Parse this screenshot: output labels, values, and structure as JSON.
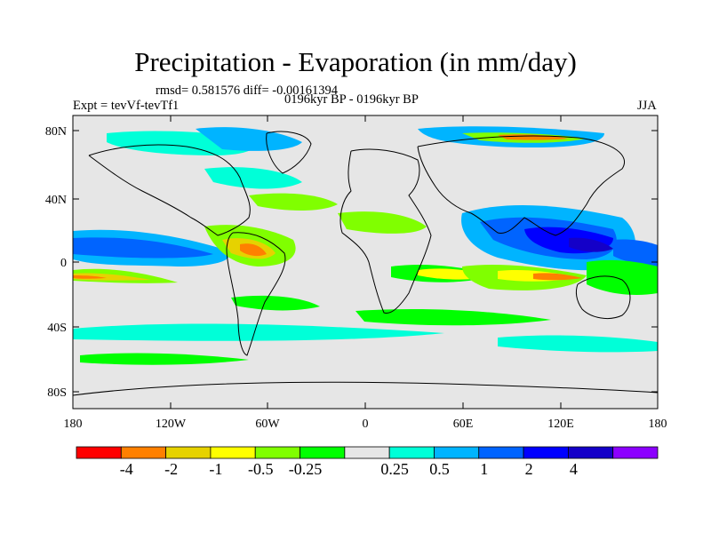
{
  "title": "Precipitation - Evaporation (in mm/day)",
  "stats": "rmsd= 0.581576 diff= -0.00161394",
  "experiment": "Expt = tevVf-tevTf1",
  "period": "0196kyr BP - 0196kyr BP",
  "season": "JJA",
  "lat_ticks": [
    "80N",
    "40N",
    "0",
    "40S",
    "80S"
  ],
  "lon_ticks": [
    "180",
    "120W",
    "60W",
    "0",
    "60E",
    "120E",
    "180"
  ],
  "colorbar": {
    "colors": [
      "#ff0000",
      "#ff8000",
      "#e6d200",
      "#ffff00",
      "#80ff00",
      "#00ff00",
      "#e6e6e6",
      "#00ffd8",
      "#00b4ff",
      "#0064ff",
      "#0000ff",
      "#1400c8",
      "#8c00ff"
    ],
    "labels": [
      "-4",
      "-2",
      "-1",
      "-0.5",
      "-0.25",
      "0.25",
      "0.5",
      "1",
      "2",
      "4"
    ]
  },
  "map_colors": {
    "ocean_land": "#e6e6e6",
    "coast": "#000000"
  }
}
